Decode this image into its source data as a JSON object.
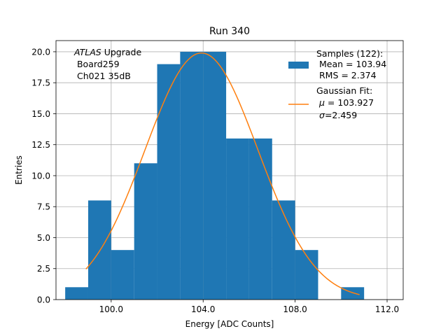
{
  "chart_data": {
    "type": "histogram",
    "title": "Run 340",
    "xlabel": "Energy [ADC Counts]",
    "ylabel": "Entries",
    "xlim": [
      97.6,
      112.7
    ],
    "ylim": [
      0,
      20.9
    ],
    "xticks": [
      100.0,
      104.0,
      108.0,
      112.0
    ],
    "xtick_labels": [
      "100.0",
      "104.0",
      "108.0",
      "112.0"
    ],
    "yticks": [
      0,
      2.5,
      5,
      7.5,
      10,
      12.5,
      15,
      17.5,
      20
    ],
    "ytick_labels": [
      "0.0",
      "2.5",
      "5.0",
      "7.5",
      "10.0",
      "12.5",
      "15.0",
      "17.5",
      "20.0"
    ],
    "grid": true,
    "bin_edges": [
      98,
      99,
      100,
      101,
      102,
      103,
      104,
      105,
      106,
      107,
      108,
      109,
      110,
      111
    ],
    "counts": [
      1,
      8,
      4,
      11,
      19,
      20,
      20,
      13,
      13,
      8,
      4,
      0,
      1
    ],
    "bar_color": "#1f77b4",
    "fit": {
      "mu": 103.927,
      "sigma": 2.459,
      "amplitude": 19.9,
      "x_range": [
        98.9,
        110.8
      ],
      "color": "#ff7f0e"
    },
    "annotation": {
      "italic_part": "ATLAS",
      "rest": " Upgrade",
      "line2": " Board259",
      "line3": " Ch021 35dB"
    },
    "legend": {
      "position": "upper right",
      "samples_line1": "Samples (122):",
      "samples_line2": " Mean = 103.94",
      "samples_line3": " RMS = 2.374",
      "fit_line1": "Gaussian Fit:",
      "fit_mu_symbol": "μ",
      "fit_mu_text": " = 103.927",
      "fit_sigma_symbol": "σ",
      "fit_sigma_text": "=2.459"
    }
  }
}
